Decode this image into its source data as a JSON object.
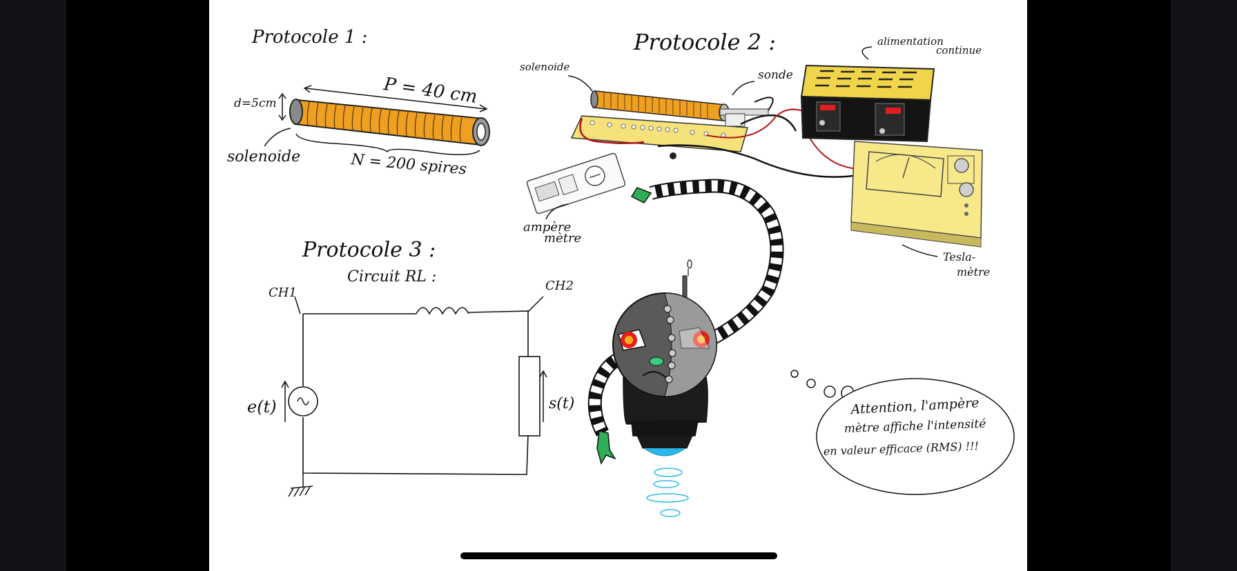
{
  "protocol1": {
    "title": "Protocole 1 :",
    "length_label": "P = 40 cm",
    "diameter_label": "d=5cm",
    "solenoid_label": "solenoide",
    "turns_label": "N = 200 spires"
  },
  "protocol2": {
    "title": "Protocole 2 :",
    "solenoid_label": "solenoide",
    "probe_label": "sonde",
    "power_label_line1": "alimentation",
    "power_label_line2": "continue",
    "ammeter_label_line1": "ampère",
    "ammeter_label_line2": "mètre",
    "teslameter_label_line1": "Tesla-",
    "teslameter_label_line2": "mètre"
  },
  "protocol3": {
    "title": "Protocole 3 :",
    "subtitle": "Circuit RL :",
    "ch1": "CH1",
    "ch2": "CH2",
    "source_label": "e(t)",
    "resistor_label": "s(t)"
  },
  "robot": {
    "speech_line1": "Attention, l'ampère",
    "speech_line2": "mètre affiche l'intensité",
    "speech_line3": "en valeur efficace (RMS) !!!"
  },
  "colors": {
    "coil_orange": "#f0a020",
    "board_yellow": "#f5e27a",
    "robot_gray": "#5a5a5a",
    "eye_red": "#e8201a",
    "hover_blue": "#2ab8e8",
    "hand_green": "#2fae55"
  }
}
